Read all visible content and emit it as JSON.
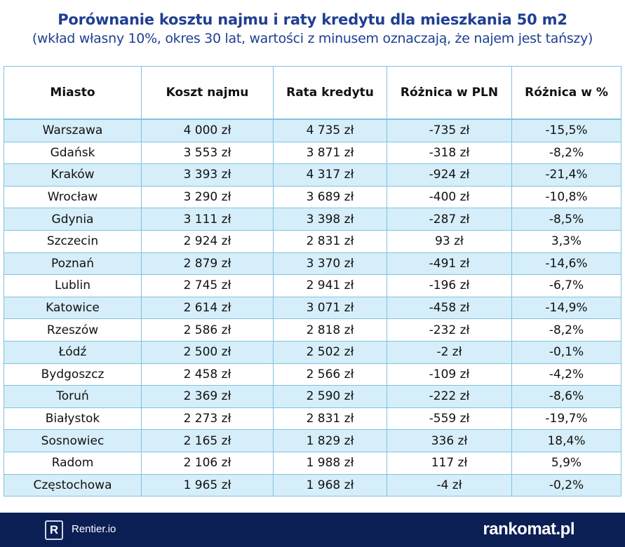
{
  "header": {
    "title": "Porównanie kosztu najmu i raty kredytu dla mieszkania 50 m2",
    "subtitle": "(wkład własny 10%, okres 30 lat, wartości z minusem oznaczają, że najem jest tańszy)"
  },
  "chart_data": {
    "type": "table",
    "title": "Porównanie kosztu najmu i raty kredytu dla mieszkania 50 m2",
    "subtitle": "(wkład własny 10%, okres 30 lat, wartości z minusem oznaczają, że najem jest tańszy)",
    "columns": [
      "Miasto",
      "Koszt najmu",
      "Rata kredytu",
      "Różnica w PLN",
      "Różnica w %"
    ],
    "rows": [
      [
        "Warszawa",
        "4 000 zł",
        "4 735 zł",
        "-735 zł",
        "-15,5%"
      ],
      [
        "Gdańsk",
        "3 553 zł",
        "3 871 zł",
        "-318 zł",
        "-8,2%"
      ],
      [
        "Kraków",
        "3 393 zł",
        "4 317 zł",
        "-924 zł",
        "-21,4%"
      ],
      [
        "Wrocław",
        "3 290 zł",
        "3 689 zł",
        "-400 zł",
        "-10,8%"
      ],
      [
        "Gdynia",
        "3 111 zł",
        "3 398 zł",
        "-287 zł",
        "-8,5%"
      ],
      [
        "Szczecin",
        "2 924 zł",
        "2 831 zł",
        "93 zł",
        "3,3%"
      ],
      [
        "Poznań",
        "2 879 zł",
        "3 370 zł",
        "-491 zł",
        "-14,6%"
      ],
      [
        "Lublin",
        "2 745 zł",
        "2 941 zł",
        "-196 zł",
        "-6,7%"
      ],
      [
        "Katowice",
        "2 614 zł",
        "3 071 zł",
        "-458 zł",
        "-14,9%"
      ],
      [
        "Rzeszów",
        "2 586 zł",
        "2 818 zł",
        "-232 zł",
        "-8,2%"
      ],
      [
        "Łódź",
        "2 500 zł",
        "2 502 zł",
        "-2 zł",
        "-0,1%"
      ],
      [
        "Bydgoszcz",
        "2 458 zł",
        "2 566 zł",
        "-109 zł",
        "-4,2%"
      ],
      [
        "Toruń",
        "2 369 zł",
        "2 590 zł",
        "-222 zł",
        "-8,6%"
      ],
      [
        "Białystok",
        "2 273 zł",
        "2 831 zł",
        "-559 zł",
        "-19,7%"
      ],
      [
        "Sosnowiec",
        "2 165 zł",
        "1 829 zł",
        "336 zł",
        "18,4%"
      ],
      [
        "Radom",
        "2 106 zł",
        "1 988 zł",
        "117 zł",
        "5,9%"
      ],
      [
        "Częstochowa",
        "1 965 zł",
        "1 968 zł",
        "-4 zł",
        "-0,2%"
      ]
    ]
  },
  "footer": {
    "logo_letter": "R",
    "logo_text": "Rentier.io",
    "brand": "rankomat.pl"
  },
  "colors": {
    "title": "#1f3f92",
    "row_alt": "#d6eef9",
    "grid": "#7fc3e0",
    "footer_bg": "#0b1f55"
  }
}
